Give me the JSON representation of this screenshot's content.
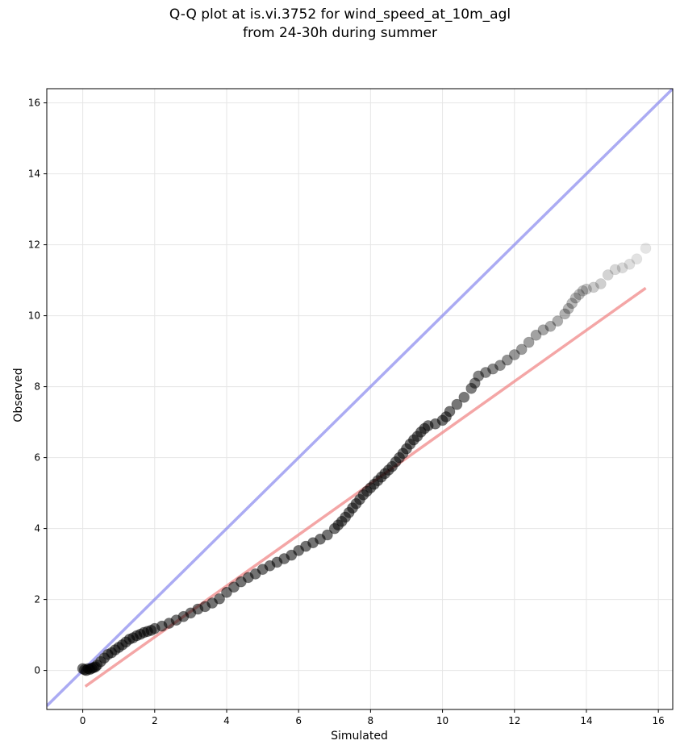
{
  "chart_data": {
    "type": "scatter",
    "title": "Q-Q plot at is.vi.3752 for wind_speed_at_10m_agl",
    "subtitle": "from 24-30h during summer",
    "xlabel": "Simulated",
    "ylabel": "Observed",
    "xlim": [
      -1.0,
      16.4
    ],
    "ylim": [
      -1.1,
      16.4
    ],
    "xticks": [
      0,
      2,
      4,
      6,
      8,
      10,
      12,
      14,
      16
    ],
    "yticks": [
      0,
      2,
      4,
      6,
      8,
      10,
      12,
      14,
      16
    ],
    "grid": true,
    "reference_lines": [
      {
        "kind": "identity",
        "color": "#8888ee",
        "x": [
          -1.0,
          16.4
        ],
        "y": [
          -1.0,
          16.4
        ]
      },
      {
        "kind": "fit",
        "color": "#f08080",
        "x": [
          0.07,
          15.65
        ],
        "y": [
          -0.45,
          10.78
        ]
      }
    ],
    "series": [
      {
        "color": "#000000",
        "x": [
          0.0,
          0.05,
          0.1,
          0.15,
          0.2,
          0.25,
          0.3,
          0.35,
          0.4,
          0.5,
          0.6,
          0.7,
          0.8,
          0.9,
          1.0,
          1.1,
          1.2,
          1.3,
          1.4,
          1.5,
          1.6,
          1.7,
          1.8,
          1.9,
          2.0,
          2.2,
          2.4,
          2.6,
          2.8,
          3.0,
          3.2,
          3.4,
          3.6,
          3.8,
          4.0,
          4.2,
          4.4,
          4.6,
          4.8,
          5.0,
          5.2,
          5.4,
          5.6,
          5.8,
          6.0,
          6.2,
          6.4,
          6.6,
          6.8,
          7.0,
          7.1,
          7.2,
          7.3,
          7.4,
          7.5,
          7.6,
          7.7,
          7.8,
          7.9,
          8.0,
          8.1,
          8.2,
          8.3,
          8.4,
          8.5,
          8.6,
          8.7,
          8.8,
          8.9,
          9.0,
          9.1,
          9.2,
          9.3,
          9.4,
          9.5,
          9.6,
          9.8,
          10.0,
          10.1,
          10.2,
          10.4,
          10.6,
          10.8,
          10.9,
          11.0,
          11.2,
          11.4,
          11.6,
          11.8,
          12.0,
          12.2,
          12.4,
          12.6,
          12.8,
          13.0,
          13.2,
          13.4,
          13.5,
          13.6,
          13.7,
          13.8,
          13.9,
          14.0,
          14.2,
          14.4,
          14.6,
          14.8,
          15.0,
          15.2,
          15.4,
          15.65
        ],
        "y": [
          0.05,
          0.02,
          0.0,
          0.05,
          0.03,
          0.06,
          0.08,
          0.1,
          0.15,
          0.25,
          0.35,
          0.45,
          0.5,
          0.58,
          0.65,
          0.72,
          0.8,
          0.88,
          0.92,
          0.98,
          1.02,
          1.07,
          1.1,
          1.13,
          1.18,
          1.25,
          1.33,
          1.42,
          1.52,
          1.62,
          1.73,
          1.8,
          1.9,
          2.02,
          2.2,
          2.35,
          2.5,
          2.62,
          2.72,
          2.85,
          2.95,
          3.05,
          3.15,
          3.25,
          3.38,
          3.5,
          3.6,
          3.7,
          3.82,
          4.0,
          4.1,
          4.2,
          4.32,
          4.45,
          4.58,
          4.7,
          4.82,
          4.95,
          5.05,
          5.15,
          5.25,
          5.35,
          5.45,
          5.55,
          5.65,
          5.75,
          5.88,
          6.0,
          6.12,
          6.25,
          6.38,
          6.5,
          6.6,
          6.72,
          6.82,
          6.9,
          6.95,
          7.05,
          7.15,
          7.3,
          7.5,
          7.7,
          7.95,
          8.1,
          8.3,
          8.4,
          8.5,
          8.6,
          8.75,
          8.9,
          9.05,
          9.25,
          9.45,
          9.6,
          9.7,
          9.85,
          10.05,
          10.2,
          10.35,
          10.5,
          10.6,
          10.7,
          10.75,
          10.8,
          10.9,
          11.15,
          11.3,
          11.35,
          11.45,
          11.6,
          11.9
        ]
      }
    ]
  }
}
